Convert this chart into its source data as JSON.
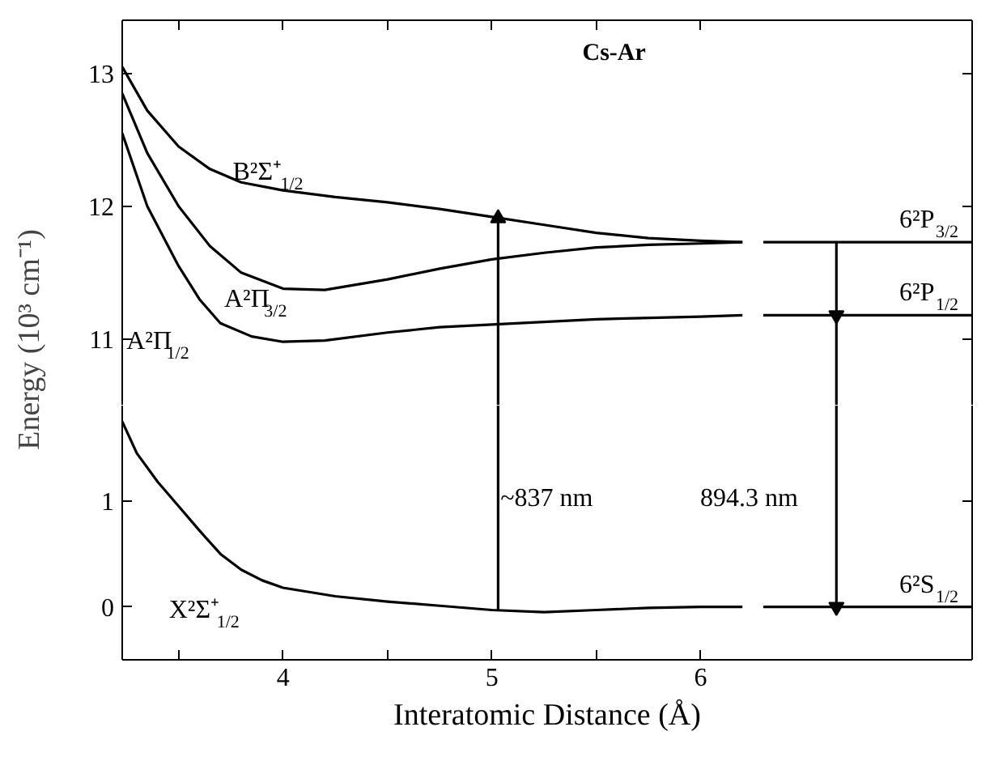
{
  "chart_data": [
    {
      "type": "line",
      "title": "Cs-Ar",
      "ylabel": "Energy (10³ cm⁻¹)",
      "xlim": [
        3.23,
        7.3
      ],
      "ylim": [
        10.5,
        13.4
      ],
      "xticks": [
        {
          "value": 3.5,
          "label": null
        },
        4,
        {
          "value": 4.5,
          "label": null
        },
        5,
        {
          "value": 5.5,
          "label": null
        },
        6
      ],
      "yticks": [
        11,
        12,
        13
      ],
      "tick_labels": "y",
      "grid": false,
      "line_style": "solid",
      "series": [
        {
          "color": "#000000",
          "x": [
            3.23,
            3.35,
            3.5,
            3.65,
            3.8,
            4.0,
            4.25,
            4.5,
            4.75,
            5.0,
            5.25,
            5.5,
            5.75,
            6.0,
            6.2
          ],
          "values": [
            13.05,
            12.72,
            12.45,
            12.28,
            12.18,
            12.12,
            12.07,
            12.03,
            11.98,
            11.92,
            11.86,
            11.8,
            11.76,
            11.74,
            11.73
          ]
        },
        {
          "color": "#000000",
          "x": [
            3.23,
            3.35,
            3.5,
            3.65,
            3.8,
            4.0,
            4.2,
            4.5,
            4.75,
            5.0,
            5.25,
            5.5,
            5.75,
            6.0,
            6.2
          ],
          "values": [
            12.85,
            12.4,
            12.0,
            11.7,
            11.5,
            11.38,
            11.37,
            11.45,
            11.53,
            11.6,
            11.65,
            11.69,
            11.71,
            11.72,
            11.73
          ]
        },
        {
          "color": "#000000",
          "x": [
            3.23,
            3.35,
            3.5,
            3.6,
            3.7,
            3.85,
            4.0,
            4.2,
            4.5,
            4.75,
            5.0,
            5.5,
            6.0,
            6.2
          ],
          "values": [
            12.55,
            12.0,
            11.55,
            11.3,
            11.12,
            11.02,
            10.98,
            10.99,
            11.05,
            11.09,
            11.11,
            11.15,
            11.17,
            11.18
          ]
        },
        {
          "color": "#000000",
          "x": [
            5.03,
            5.03
          ],
          "values": [
            10.5,
            11.91
          ],
          "marker": "triangle"
        },
        {
          "color": "#000000",
          "x": [
            6.65,
            6.65
          ],
          "values": [
            11.73,
            11.18
          ],
          "marker": "triangle"
        },
        {
          "color": "#000000",
          "x": [
            6.65,
            6.65
          ],
          "values": [
            11.18,
            10.5
          ]
        }
      ],
      "ref_lines": [
        {
          "axis": "y",
          "value": 11.73,
          "label": "6²P$_{3/2}$",
          "color": "#000000"
        },
        {
          "axis": "y",
          "value": 11.18,
          "label": "6²P$_{1/2}$",
          "color": "#000000"
        }
      ],
      "annotations": [
        "B²Σ⁺$_{1/2}$",
        "A²Π$_{3/2}$",
        "A²Π$_{1/2}$"
      ]
    },
    {
      "type": "line",
      "xlabel": "Interatomic Distance (Å)",
      "xlim": [
        3.23,
        7.3
      ],
      "ylim": [
        -0.5,
        1.9
      ],
      "xticks": [
        {
          "value": 3.5,
          "label": null
        },
        4,
        {
          "value": 4.5,
          "label": null
        },
        5,
        {
          "value": 5.5,
          "label": null
        },
        6
      ],
      "yticks": [
        0,
        1
      ],
      "grid": false,
      "line_style": "solid",
      "series": [
        {
          "color": "#000000",
          "x": [
            3.23,
            3.3,
            3.4,
            3.5,
            3.6,
            3.7,
            3.8,
            3.9,
            4.0,
            4.25,
            4.5,
            4.75,
            5.0,
            5.25,
            5.5,
            5.75,
            6.0,
            6.2
          ],
          "values": [
            1.75,
            1.45,
            1.18,
            0.95,
            0.72,
            0.5,
            0.35,
            0.25,
            0.18,
            0.1,
            0.05,
            0.01,
            -0.03,
            -0.05,
            -0.03,
            -0.01,
            0.0,
            0.0
          ]
        },
        {
          "color": "#000000",
          "x": [
            5.03,
            5.03
          ],
          "values": [
            -0.03,
            1.9
          ]
        },
        {
          "color": "#000000",
          "x": [
            6.65,
            6.65
          ],
          "values": [
            1.9,
            0.0
          ],
          "marker": "triangle"
        }
      ],
      "ref_lines": [
        {
          "axis": "y",
          "value": 0,
          "label": "6²S$_{1/2}$",
          "color": "#000000"
        }
      ],
      "annotations": [
        "X²Σ⁺$_{1/2}$",
        "~837 nm",
        "894.3 nm"
      ]
    }
  ]
}
